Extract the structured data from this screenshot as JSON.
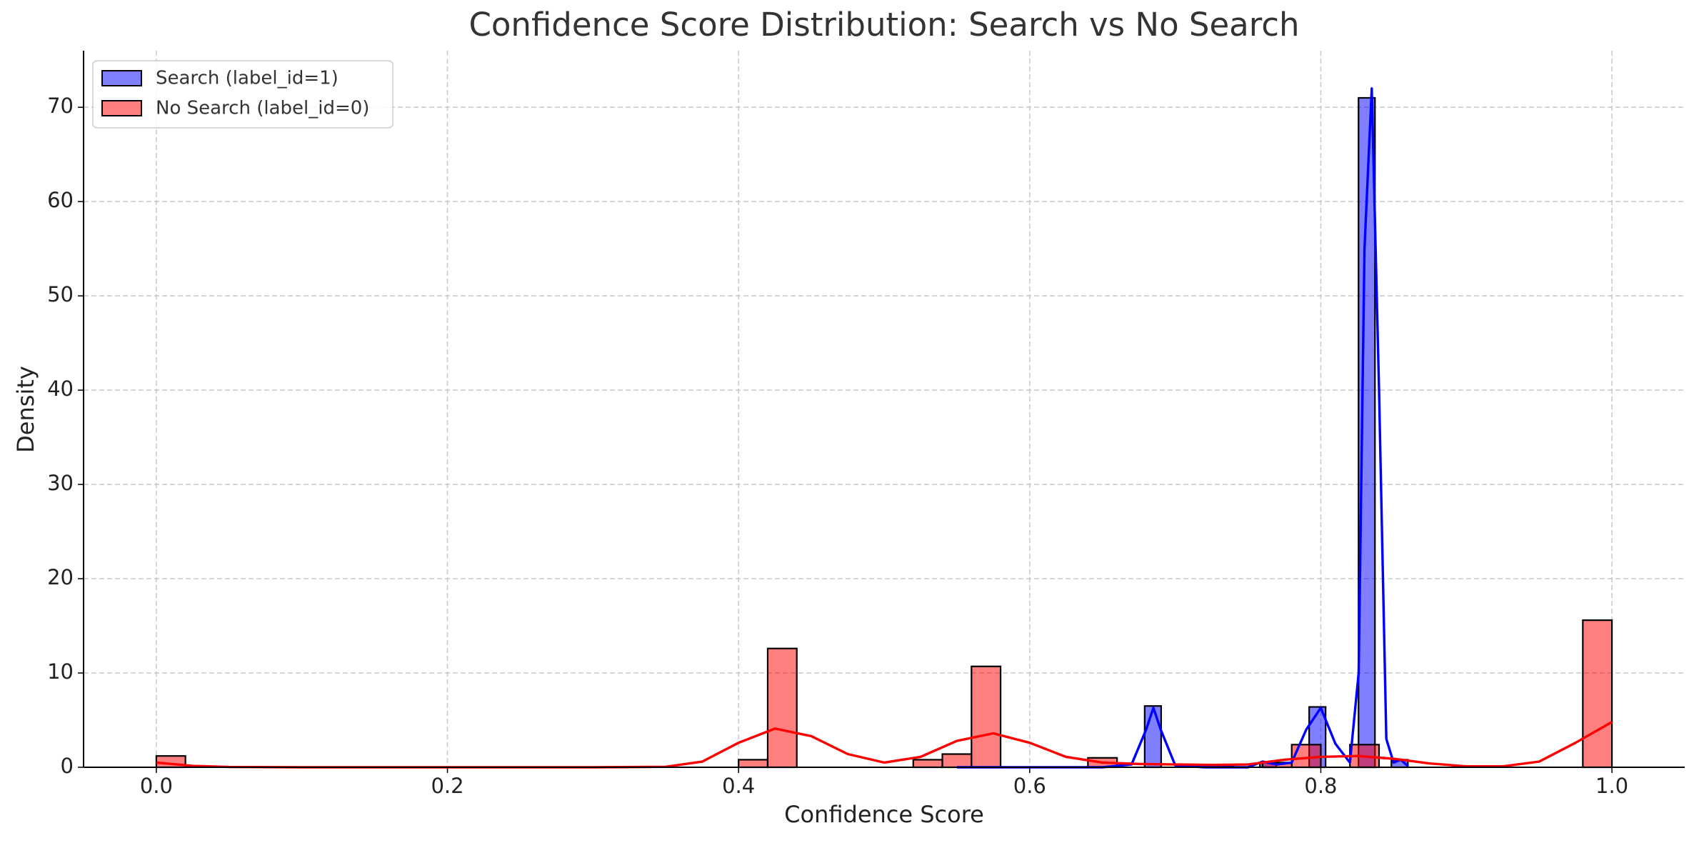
{
  "chart_data": {
    "type": "histogram",
    "title": "Confidence Score Distribution: Search vs No Search",
    "x_label": "Confidence Score",
    "y_label": "Density",
    "xlim": [
      -0.05,
      1.05
    ],
    "ylim": [
      0,
      76
    ],
    "xticks": [
      {
        "value": 0,
        "label": "0.0"
      },
      0.2,
      0.4,
      0.6,
      0.8,
      {
        "value": 1,
        "label": "1.0"
      }
    ],
    "yticks": [
      0,
      10,
      20,
      30,
      40,
      50,
      60,
      70
    ],
    "grid": true,
    "legend": "upper left",
    "series": [
      {
        "name": "Search (label_id=1)",
        "color": "#0000ff",
        "bins": [
          0.679,
          0.6903,
          0.7016,
          0.7129,
          0.7242,
          0.7355,
          0.7468,
          0.7581,
          0.7694,
          0.7807,
          0.792,
          0.8033,
          0.8146,
          0.8259,
          0.8372,
          0.8485,
          0.8598
        ],
        "values": [
          6.5,
          0,
          0,
          0,
          0,
          0,
          0,
          0.5,
          0,
          0,
          6.4,
          0,
          0,
          71,
          0,
          0.8
        ],
        "kde": {
          "x": [
            0.55,
            0.6,
            0.65,
            0.67,
            0.68,
            0.685,
            0.69,
            0.7,
            0.72,
            0.75,
            0.76,
            0.77,
            0.78,
            0.79,
            0.8,
            0.81,
            0.82,
            0.826,
            0.83,
            0.835,
            0.84,
            0.845,
            0.85,
            0.855,
            0.86
          ],
          "values": [
            0,
            0,
            0,
            0.3,
            4,
            6.3,
            4,
            0.2,
            0,
            0,
            0.6,
            0.3,
            0.5,
            4,
            6.3,
            2.5,
            0.5,
            10,
            55,
            72,
            40,
            3,
            0.5,
            0.8,
            0.1
          ]
        }
      },
      {
        "name": "No Search (label_id=0)",
        "color": "#ff0000",
        "bins": [
          0,
          0.02,
          0.04,
          0.06,
          0.08,
          0.1,
          0.12,
          0.14,
          0.16,
          0.18,
          0.2,
          0.22,
          0.24,
          0.26,
          0.28,
          0.3,
          0.32,
          0.34,
          0.36,
          0.38,
          0.4,
          0.42,
          0.44,
          0.46,
          0.48,
          0.5,
          0.52,
          0.54,
          0.56,
          0.58,
          0.6,
          0.62,
          0.64,
          0.66,
          0.68,
          0.7,
          0.72,
          0.74,
          0.76,
          0.78,
          0.8,
          0.82,
          0.84,
          0.86,
          0.88,
          0.9,
          0.92,
          0.94,
          0.96,
          0.98,
          1
        ],
        "values": [
          1.2,
          0,
          0,
          0,
          0,
          0,
          0,
          0,
          0,
          0,
          0,
          0,
          0,
          0,
          0,
          0,
          0,
          0,
          0,
          0,
          0.8,
          12.6,
          0,
          0,
          0,
          0,
          0.8,
          1.4,
          10.7,
          0,
          0,
          0,
          1.0,
          0,
          0,
          0,
          0.2,
          0,
          0.5,
          2.4,
          0,
          2.4,
          0,
          0,
          0,
          0,
          0,
          0,
          0,
          15.6
        ],
        "kde": {
          "x": [
            0,
            0.025,
            0.05,
            0.1,
            0.2,
            0.3,
            0.35,
            0.375,
            0.4,
            0.425,
            0.45,
            0.475,
            0.5,
            0.525,
            0.55,
            0.575,
            0.6,
            0.625,
            0.65,
            0.675,
            0.7,
            0.725,
            0.75,
            0.775,
            0.8,
            0.825,
            0.85,
            0.875,
            0.9,
            0.925,
            0.95,
            0.975,
            1
          ],
          "values": [
            0.5,
            0.15,
            0.03,
            0,
            0,
            0,
            0.05,
            0.6,
            2.6,
            4.1,
            3.3,
            1.4,
            0.5,
            1.1,
            2.8,
            3.6,
            2.6,
            1.1,
            0.5,
            0.35,
            0.3,
            0.25,
            0.3,
            0.8,
            1.1,
            1.2,
            0.9,
            0.4,
            0.1,
            0.1,
            0.6,
            2.6,
            4.8
          ]
        }
      }
    ]
  }
}
